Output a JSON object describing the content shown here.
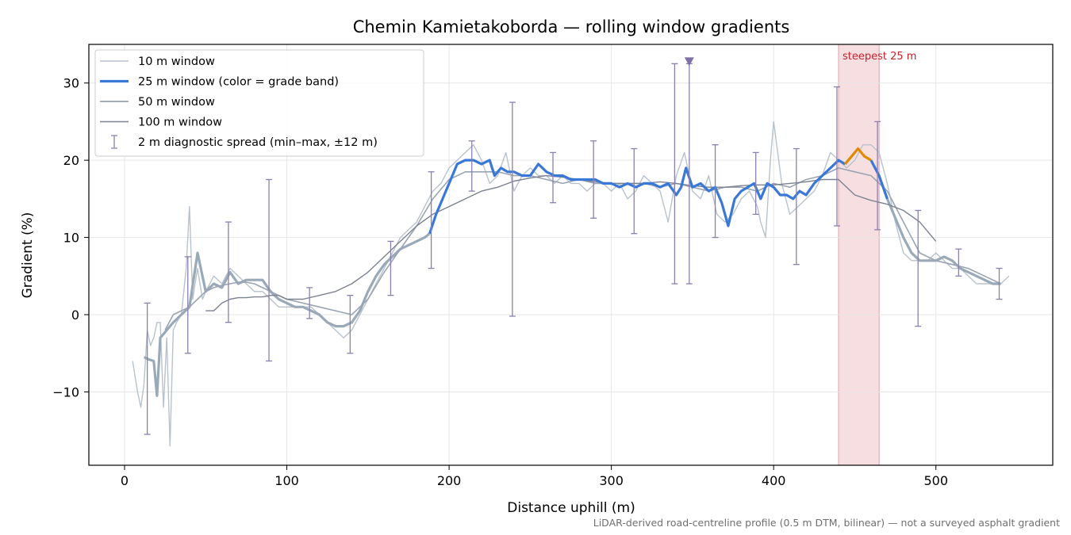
{
  "chart_data": {
    "type": "line",
    "title": "Chemin Kamietakoborda — rolling window gradients",
    "xlabel": "Distance uphill (m)",
    "ylabel": "Gradient (%)",
    "xlim": [
      -22,
      572
    ],
    "ylim": [
      -19.5,
      35
    ],
    "x_ticks": [
      0,
      100,
      200,
      300,
      400,
      500
    ],
    "y_ticks": [
      -10,
      0,
      10,
      20,
      30
    ],
    "x_tick_labels": [
      "0",
      "100",
      "200",
      "300",
      "400",
      "500"
    ],
    "y_tick_labels": [
      "−10",
      "0",
      "10",
      "20",
      "30"
    ],
    "grid": true,
    "legend_position": "upper left",
    "footnote": "LiDAR-derived road-centreline profile (0.5 m DTM, bilinear) — not a surveyed asphalt gradient",
    "colors": {
      "w10": "#b8c2cc",
      "w25_band": "#3a78d8",
      "w25_steep": "#e08a00",
      "w25_faint": "#9aa9b8",
      "w50": "#9aa3b2",
      "w100": "#7c8290",
      "diag": "#8a80b0",
      "steep_band": "#f0c4c8",
      "steep_text": "#c8202c"
    },
    "legend": [
      {
        "label": "10 m window",
        "key": "w10"
      },
      {
        "label": "25 m window (color = grade band)",
        "key": "w25_band"
      },
      {
        "label": "50 m window",
        "key": "w50"
      },
      {
        "label": "100 m window",
        "key": "w100"
      },
      {
        "label": "2 m diagnostic spread (min–max, ±12 m)",
        "key": "diag"
      }
    ],
    "steepest_region": {
      "label": "steepest 25 m",
      "x0": 440,
      "x1": 465
    },
    "peak_marker": {
      "x": 348,
      "y": 32.8
    },
    "series": [
      {
        "name": "10 m window",
        "key": "w10",
        "x": [
          5,
          8,
          10,
          12,
          14,
          16,
          18,
          20,
          22,
          24,
          26,
          28,
          30,
          32,
          35,
          38,
          40,
          42,
          45,
          48,
          50,
          55,
          60,
          65,
          70,
          75,
          80,
          85,
          90,
          95,
          100,
          105,
          110,
          115,
          120,
          125,
          130,
          135,
          140,
          145,
          150,
          155,
          160,
          165,
          170,
          175,
          180,
          185,
          190,
          195,
          200,
          205,
          210,
          215,
          220,
          225,
          230,
          235,
          240,
          245,
          250,
          255,
          260,
          265,
          270,
          275,
          280,
          285,
          290,
          295,
          300,
          305,
          310,
          315,
          320,
          325,
          330,
          335,
          340,
          345,
          350,
          355,
          360,
          365,
          370,
          375,
          380,
          385,
          390,
          392,
          395,
          398,
          400,
          405,
          410,
          415,
          420,
          425,
          430,
          435,
          440,
          445,
          450,
          455,
          460,
          465,
          470,
          475,
          480,
          485,
          490,
          495,
          500,
          505,
          510,
          515,
          520,
          525,
          530,
          535,
          540,
          545
        ],
        "y": [
          -6,
          -10,
          -12,
          -9,
          -2,
          -4,
          -3,
          -1,
          -1,
          -12,
          -3,
          -17,
          -2,
          -1,
          0,
          6,
          14,
          2,
          6,
          2,
          3,
          5,
          4,
          6,
          5,
          4,
          3,
          3,
          2,
          1,
          1,
          1,
          1,
          1,
          0,
          -1,
          -2,
          -3,
          -2,
          0,
          2,
          4,
          6,
          8,
          10,
          11,
          12,
          14,
          16,
          17,
          19,
          20,
          21,
          22,
          20,
          17,
          18,
          21,
          16,
          18,
          19,
          18,
          18,
          17,
          18,
          17,
          17,
          16,
          17,
          17,
          16,
          17,
          15,
          16,
          18,
          17,
          16,
          12,
          18,
          21,
          16,
          15,
          18,
          13,
          12,
          13,
          15,
          16,
          14,
          12,
          10,
          20,
          25,
          17,
          13,
          14,
          15,
          16,
          18,
          21,
          20,
          19,
          20,
          22,
          22,
          21,
          17,
          12,
          8,
          7,
          7,
          7,
          8,
          7,
          6,
          6,
          5,
          4,
          4,
          4,
          4,
          5
        ]
      },
      {
        "name": "25 m window (color = grade band)",
        "key": "w25",
        "x": [
          12,
          15,
          18,
          20,
          22,
          24,
          26,
          28,
          30,
          35,
          40,
          45,
          50,
          55,
          60,
          65,
          70,
          75,
          80,
          85,
          90,
          95,
          100,
          105,
          110,
          115,
          120,
          125,
          130,
          135,
          140,
          145,
          150,
          155,
          160,
          165,
          170,
          175,
          180,
          185,
          188,
          192,
          196,
          200,
          205,
          210,
          215,
          220,
          225,
          228,
          232,
          236,
          240,
          245,
          250,
          255,
          260,
          265,
          270,
          275,
          280,
          285,
          290,
          295,
          300,
          305,
          310,
          315,
          320,
          325,
          330,
          335,
          340,
          343,
          346,
          350,
          355,
          360,
          364,
          368,
          372,
          376,
          380,
          384,
          388,
          392,
          396,
          400,
          404,
          408,
          412,
          416,
          420,
          425,
          430,
          435,
          440,
          444,
          448,
          452,
          456,
          460,
          465,
          470,
          475,
          480,
          485,
          490,
          495,
          500,
          505,
          510,
          515,
          520,
          525,
          530,
          535,
          540
        ],
        "y": [
          -5.5,
          -5.8,
          -6,
          -10.5,
          -3,
          -2.5,
          -2,
          -1.5,
          -1,
          0,
          1,
          8,
          3,
          4,
          3.5,
          5.5,
          4,
          4.5,
          4.5,
          4.5,
          3,
          2,
          1.5,
          1,
          1,
          0.5,
          0,
          -1,
          -1.5,
          -1.5,
          -1,
          0.5,
          3,
          5,
          6.5,
          7.5,
          8.5,
          9,
          9.5,
          10,
          10.5,
          13,
          15,
          17,
          19.5,
          20,
          20,
          19.5,
          20,
          18,
          19,
          18.5,
          18.5,
          18,
          18,
          19.5,
          18.5,
          18,
          18,
          17.5,
          17.5,
          17.5,
          17.5,
          17,
          17,
          16.5,
          17,
          16.5,
          17,
          17,
          16.5,
          17,
          15.5,
          16.5,
          19,
          16.5,
          17,
          16,
          16.5,
          14.5,
          11.5,
          15,
          16,
          16.5,
          17,
          15,
          17,
          16.5,
          15.5,
          15.5,
          15,
          16,
          15.5,
          17,
          18,
          19,
          20,
          19.5,
          20.5,
          21.5,
          20.5,
          20,
          18,
          15,
          12.5,
          10,
          8,
          7,
          7,
          7,
          7.5,
          7,
          6,
          5.5,
          5,
          4.5,
          4,
          4
        ]
      },
      {
        "name": "50 m window",
        "key": "w50",
        "x": [
          25,
          30,
          35,
          40,
          45,
          50,
          55,
          60,
          65,
          70,
          75,
          80,
          85,
          90,
          95,
          100,
          110,
          120,
          130,
          140,
          150,
          160,
          170,
          180,
          190,
          200,
          210,
          220,
          230,
          240,
          250,
          260,
          270,
          280,
          290,
          300,
          310,
          320,
          330,
          340,
          350,
          360,
          370,
          380,
          390,
          400,
          410,
          420,
          430,
          440,
          450,
          460,
          470,
          480,
          490,
          500,
          510,
          520,
          530,
          540
        ],
        "y": [
          -2,
          0,
          0.5,
          1,
          2,
          3,
          3.5,
          3.8,
          4,
          4.2,
          4.2,
          4,
          3.5,
          3,
          2.5,
          2,
          1.5,
          1,
          0.5,
          0,
          2,
          5.5,
          8.5,
          11.5,
          15,
          17.5,
          18.5,
          18.5,
          18.5,
          18,
          18,
          17.5,
          17,
          17.5,
          17,
          17,
          17,
          17,
          16.5,
          17,
          16.5,
          16,
          16.5,
          16.5,
          16,
          17,
          16.5,
          17.5,
          18,
          19,
          18.5,
          18,
          16,
          12,
          8,
          7,
          6.5,
          6,
          5,
          4
        ]
      },
      {
        "name": "100 m window",
        "key": "w100",
        "x": [
          50,
          55,
          60,
          65,
          70,
          75,
          80,
          85,
          90,
          95,
          100,
          110,
          120,
          130,
          140,
          150,
          160,
          170,
          180,
          190,
          200,
          210,
          220,
          230,
          240,
          250,
          260,
          270,
          280,
          290,
          300,
          310,
          320,
          330,
          340,
          350,
          360,
          370,
          380,
          390,
          400,
          410,
          420,
          430,
          440,
          450,
          460,
          470,
          480,
          490,
          500
        ],
        "y": [
          0.5,
          0.5,
          1.5,
          2,
          2.2,
          2.2,
          2.3,
          2.3,
          2.5,
          2.5,
          2,
          2,
          2.5,
          3,
          4,
          5.5,
          7.5,
          9.5,
          11.5,
          13,
          14,
          15,
          16,
          16.5,
          17.3,
          17.7,
          18,
          17.8,
          17.5,
          17.2,
          17,
          17,
          17,
          17.2,
          17,
          16.7,
          16.5,
          16.5,
          16.7,
          16.8,
          16.8,
          17,
          17.2,
          17.5,
          17.5,
          15.5,
          14.8,
          14.3,
          13.5,
          12,
          9.5
        ]
      }
    ],
    "steep_segment": {
      "x_from": 444,
      "x_to": 460
    },
    "diagnostic_spread": [
      {
        "x": 14,
        "min": -15.5,
        "max": 1.5
      },
      {
        "x": 39,
        "min": -5,
        "max": 7.5
      },
      {
        "x": 64,
        "min": -1,
        "max": 12
      },
      {
        "x": 89,
        "min": -6,
        "max": 17.5
      },
      {
        "x": 114,
        "min": -0.5,
        "max": 3.5
      },
      {
        "x": 139,
        "min": -5,
        "max": 2.5
      },
      {
        "x": 164,
        "min": 2.5,
        "max": 9.5
      },
      {
        "x": 189,
        "min": 6,
        "max": 18.5
      },
      {
        "x": 214,
        "min": 16,
        "max": 22.5
      },
      {
        "x": 239,
        "min": -0.2,
        "max": 27.5
      },
      {
        "x": 264,
        "min": 14.5,
        "max": 21
      },
      {
        "x": 289,
        "min": 12.5,
        "max": 22.5
      },
      {
        "x": 314,
        "min": 10.5,
        "max": 21.5
      },
      {
        "x": 339,
        "min": 4,
        "max": 32.5
      },
      {
        "x": 348,
        "min": 4,
        "max": 32.5
      },
      {
        "x": 364,
        "min": 10,
        "max": 22
      },
      {
        "x": 389,
        "min": 13,
        "max": 21
      },
      {
        "x": 414,
        "min": 6.5,
        "max": 21.5
      },
      {
        "x": 439,
        "min": 11.5,
        "max": 29.5
      },
      {
        "x": 464,
        "min": 11,
        "max": 25
      },
      {
        "x": 489,
        "min": -1.5,
        "max": 13.5
      },
      {
        "x": 514,
        "min": 5,
        "max": 8.5
      },
      {
        "x": 539,
        "min": 2,
        "max": 6
      }
    ]
  }
}
